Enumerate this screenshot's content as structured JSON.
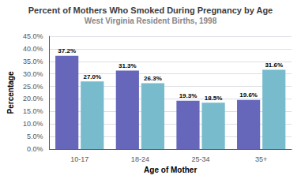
{
  "chart_data": {
    "type": "bar",
    "title": "Percent of Mothers Who Smoked During Pregnancy by Age",
    "subtitle": "West Virginia Resident Births, 1998",
    "xlabel": "Age of Mother",
    "ylabel": "Percentage",
    "categories": [
      "10-17",
      "18-24",
      "25-34",
      "35+"
    ],
    "series": [
      {
        "color": "#6666bb",
        "values": [
          37.2,
          31.3,
          19.3,
          19.6
        ],
        "value_labels": [
          "37.2%",
          "31.3%",
          "19.3%",
          "19.6%"
        ]
      },
      {
        "color": "#77bbcc",
        "values": [
          27.0,
          26.3,
          18.5,
          31.6
        ],
        "value_labels": [
          "27.0%",
          "26.3%",
          "18.5%",
          "31.6%"
        ]
      }
    ],
    "ylim": [
      0,
      45
    ],
    "yticks": [
      {
        "value": 0,
        "label": "0.0%"
      },
      {
        "value": 5,
        "label": "5.0%"
      },
      {
        "value": 10,
        "label": "10.0%"
      },
      {
        "value": 15,
        "label": "15.0%"
      },
      {
        "value": 20,
        "label": "20.0%"
      },
      {
        "value": 25,
        "label": "25.0%"
      },
      {
        "value": 30,
        "label": "30.0%"
      },
      {
        "value": 35,
        "label": "35.0%"
      },
      {
        "value": 40,
        "label": "40.0%"
      },
      {
        "value": 45,
        "label": "45.0%"
      }
    ],
    "grid": true,
    "data_labels": true
  }
}
